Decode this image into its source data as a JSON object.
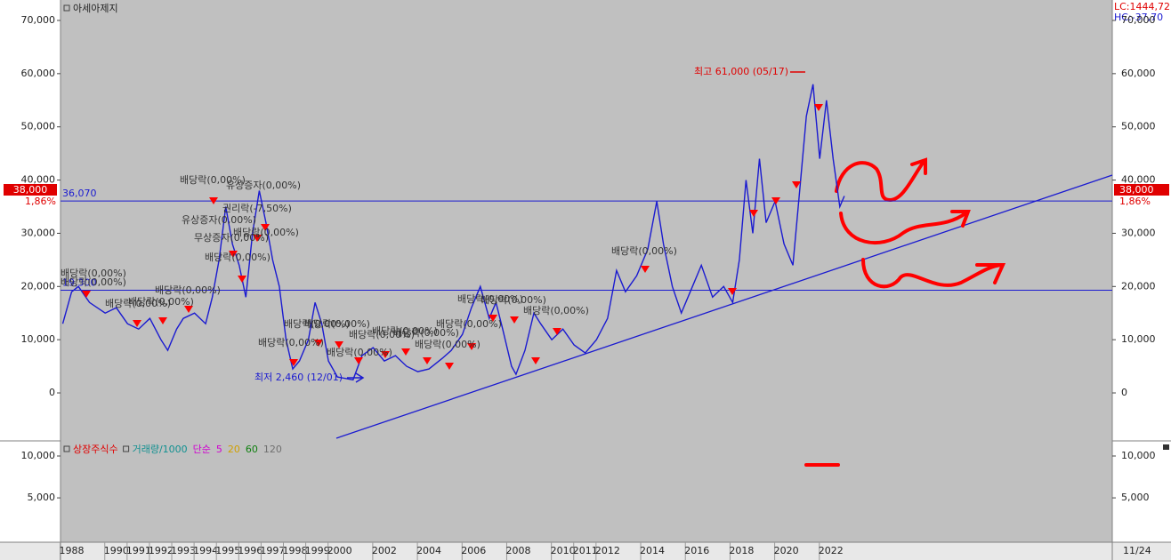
{
  "chart_data": {
    "type": "line",
    "title": "아세아제지",
    "lc_label": "LC:1444,72",
    "hc_label": "HC:-37,70",
    "price_tag": "38,000",
    "change_tag": "1,86%",
    "date_label": "11/24",
    "high_label": "최고 61,000 (05/17)",
    "low_label": "최저 2,460 (12/01)",
    "levels": [
      {
        "value": 36070,
        "label": "36,070"
      },
      {
        "value": 19300,
        "label": "19,300"
      }
    ],
    "xlim": [
      1987.5,
      2034.6
    ],
    "xticks": [
      1988,
      1990,
      1991,
      1992,
      1993,
      1994,
      1995,
      1996,
      1997,
      1998,
      1999,
      2000,
      2002,
      2004,
      2006,
      2008,
      2010,
      2011,
      2012,
      2014,
      2016,
      2018,
      2020,
      2022
    ],
    "ylim": [
      -8850,
      73840
    ],
    "yticks": [
      0,
      {
        "value": 10000,
        "label": "10,000"
      },
      {
        "value": 20000,
        "label": "20,000"
      },
      {
        "value": 30000,
        "label": "30,000"
      },
      {
        "value": 40000,
        "label": "40,000"
      },
      {
        "value": 50000,
        "label": "50,000"
      },
      {
        "value": 60000,
        "label": "60,000"
      },
      {
        "value": 70000,
        "label": "70,000"
      }
    ],
    "series": [
      {
        "color": "#1a1ad0",
        "x": [
          1987.6,
          1988.0,
          1988.3,
          1988.8,
          1989.5,
          1990.0,
          1990.5,
          1991.0,
          1991.5,
          1992.0,
          1992.3,
          1992.7,
          1993.0,
          1993.5,
          1994.0,
          1994.3,
          1994.6,
          1994.9,
          1995.2,
          1995.5,
          1995.8,
          1996.1,
          1996.4,
          1996.7,
          1997.0,
          1997.3,
          1997.6,
          1997.9,
          1998.2,
          1998.6,
          1998.9,
          1999.2,
          1999.5,
          1999.9,
          2000.6,
          2001.0,
          2001.5,
          2002.0,
          2002.5,
          2003.0,
          2003.5,
          2004.0,
          2004.6,
          2005.0,
          2005.5,
          2005.9,
          2006.3,
          2006.7,
          2007.0,
          2007.3,
          2007.7,
          2007.9,
          2008.3,
          2008.7,
          2009.0,
          2009.5,
          2010.0,
          2010.5,
          2011.0,
          2011.5,
          2012.0,
          2012.4,
          2012.8,
          2013.3,
          2013.8,
          2014.2,
          2014.5,
          2014.9,
          2015.3,
          2015.8,
          2016.2,
          2016.7,
          2017.2,
          2017.6,
          2017.9,
          2018.2,
          2018.5,
          2018.8,
          2019.1,
          2019.5,
          2019.9,
          2020.3,
          2020.6,
          2020.9,
          2021.2,
          2021.5,
          2021.8,
          2022.1,
          2022.4,
          2022.6
        ],
        "values": [
          13000,
          19000,
          20000,
          17000,
          15000,
          16000,
          13000,
          12000,
          14000,
          10000,
          8000,
          12000,
          14000,
          15000,
          13000,
          18000,
          25000,
          35000,
          28000,
          24000,
          18000,
          30000,
          38000,
          32000,
          25000,
          20000,
          10000,
          4500,
          6000,
          10000,
          17000,
          13000,
          6000,
          3000,
          2460,
          7000,
          8500,
          6000,
          7000,
          5000,
          4000,
          4500,
          6500,
          8000,
          11000,
          16000,
          20000,
          14000,
          17000,
          12000,
          5000,
          3500,
          8000,
          15000,
          13000,
          10000,
          12000,
          9000,
          7500,
          10000,
          14000,
          23000,
          19000,
          22000,
          27000,
          36000,
          28000,
          20000,
          15000,
          20000,
          24000,
          18000,
          20000,
          17000,
          25000,
          40000,
          30000,
          44000,
          32000,
          36000,
          28000,
          24000,
          38000,
          52000,
          58000,
          44000,
          55000,
          44000,
          35000,
          37000
        ]
      }
    ],
    "annotations": [
      "배당락(0,00%)",
      "유상증자(0,00%)",
      "유상증자(0,00%)",
      "권리락(-7,50%)",
      "무상증자(0,00%)",
      "배당락(0,00%)",
      "배당락(0,00%)",
      "배당락(0,00%)",
      "배당락(0,00%)",
      "배당락(0,00%)",
      "배당락(0,00%)",
      "배당락(0,00%)",
      "배당락(0,00%)",
      "배당락(0,00%)",
      "배당락(0,00%)",
      "배당락(0,00%)",
      "배당락(0,00%)",
      "배당락(0,00%)",
      "배당락(0,00%)",
      "배당락(0,00%)",
      "배당락(0,00%)",
      "배당락(0,00%)",
      "배당락(0,00%)",
      "배당락(0,00%)",
      "배당락(0,00%)"
    ],
    "lower_panel": {
      "ylim": [
        -300,
        11700
      ],
      "yticks": [
        {
          "value": 10000,
          "label": "10,000"
        },
        {
          "value": 5000,
          "label": "5,000"
        }
      ],
      "legend": [
        {
          "name": "상장주식수",
          "color": "#e00000"
        },
        {
          "name": "거래량/1000",
          "color": "#109090"
        },
        {
          "name": "단순",
          "color": "#d000d0"
        },
        {
          "name": "5",
          "color": "#d000d0"
        },
        {
          "name": "20",
          "color": "#d0a000"
        },
        {
          "name": "60",
          "color": "#108010"
        },
        {
          "name": "120",
          "color": "#707070"
        }
      ]
    }
  }
}
